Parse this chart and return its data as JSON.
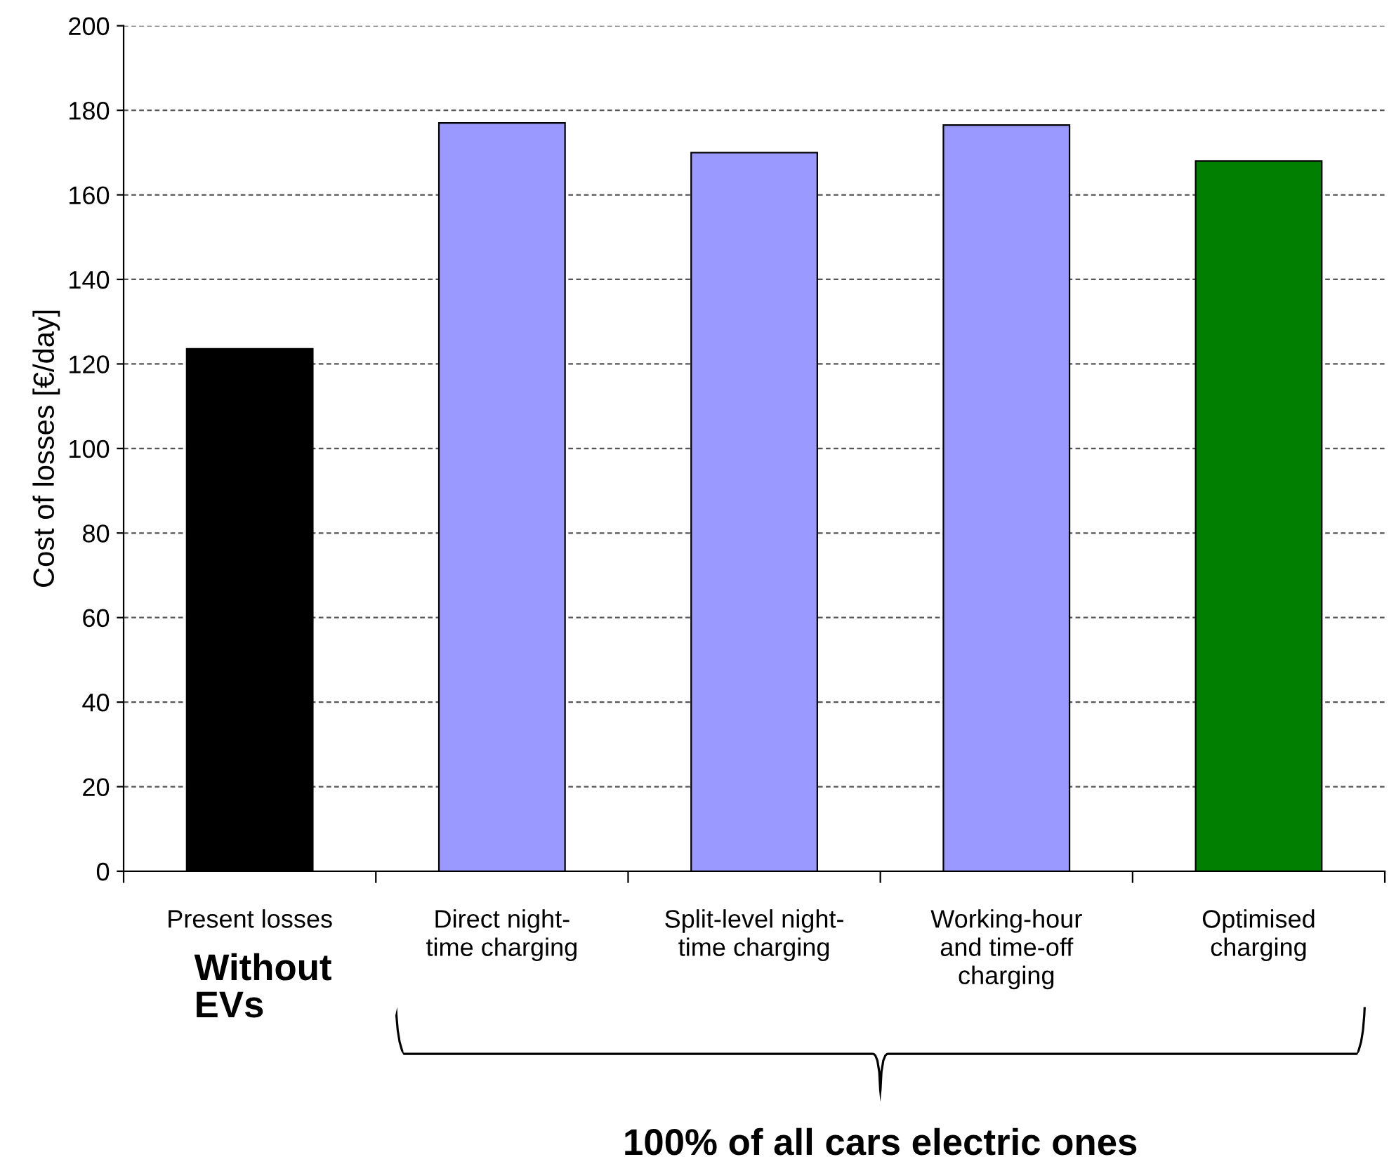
{
  "chart_data": {
    "type": "bar",
    "ylabel": "Cost of losses [€/day]",
    "categories": [
      "Present losses",
      "Direct night-\ntime charging",
      "Split-level night-\ntime charging",
      "Working-hour\nand time-off\ncharging",
      "Optimised\ncharging"
    ],
    "values": [
      123.6,
      177,
      170,
      176.5,
      168
    ],
    "colors": [
      "#000000",
      "#9999ff",
      "#9999ff",
      "#9999ff",
      "#007f00"
    ],
    "ylim": [
      0,
      200
    ],
    "yticks": [
      0,
      20,
      40,
      60,
      80,
      100,
      120,
      140,
      160,
      180,
      200
    ],
    "grid": "y",
    "annotations": [
      "Without\nEVs",
      "100% of all cars electric ones"
    ]
  }
}
